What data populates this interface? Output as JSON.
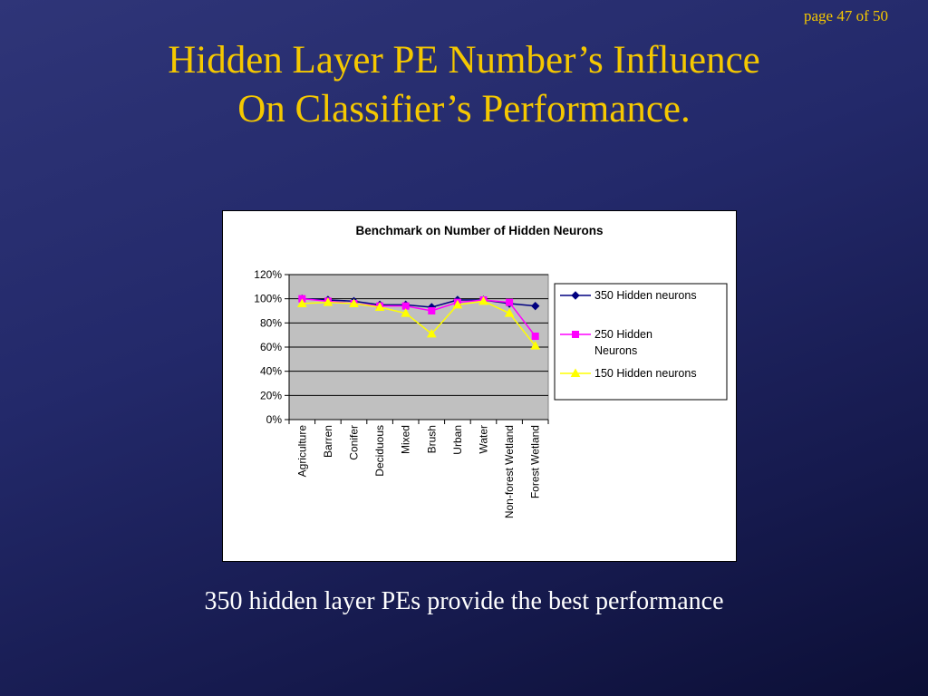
{
  "page_number": "page 47 of 50",
  "title_line1": "Hidden Layer PE Number’s Influence",
  "title_line2": "On Classifier’s Performance.",
  "caption": "350 hidden layer PEs provide the best performance",
  "chart_data": {
    "type": "line",
    "title": "Benchmark on Number of Hidden Neurons",
    "categories": [
      "Agriculture",
      "Barren",
      "Conifer",
      "Deciduous",
      "Mixed",
      "Brush",
      "Urban",
      "Water",
      "Non-forest Wetland",
      "Forest Wetland"
    ],
    "ylim": [
      0,
      1.2
    ],
    "yticks": [
      "0%",
      "20%",
      "40%",
      "60%",
      "80%",
      "100%",
      "120%"
    ],
    "grid": true,
    "plot_background": "#c0c0c0",
    "legend_position": "right",
    "series": [
      {
        "name": "350 Hidden neurons",
        "color": "#000080",
        "marker": "diamond",
        "values": [
          1.0,
          0.99,
          0.98,
          0.95,
          0.95,
          0.93,
          0.99,
          0.99,
          0.96,
          0.94
        ]
      },
      {
        "name": "250 Hidden Neurons",
        "color": "#ff00ff",
        "marker": "square",
        "values": [
          1.0,
          0.98,
          0.96,
          0.94,
          0.94,
          0.9,
          0.97,
          0.99,
          0.97,
          0.69
        ]
      },
      {
        "name": "150 Hidden neurons",
        "color": "#ffff00",
        "marker": "triangle",
        "values": [
          0.96,
          0.97,
          0.96,
          0.93,
          0.88,
          0.71,
          0.95,
          0.98,
          0.88,
          0.61
        ]
      }
    ]
  }
}
